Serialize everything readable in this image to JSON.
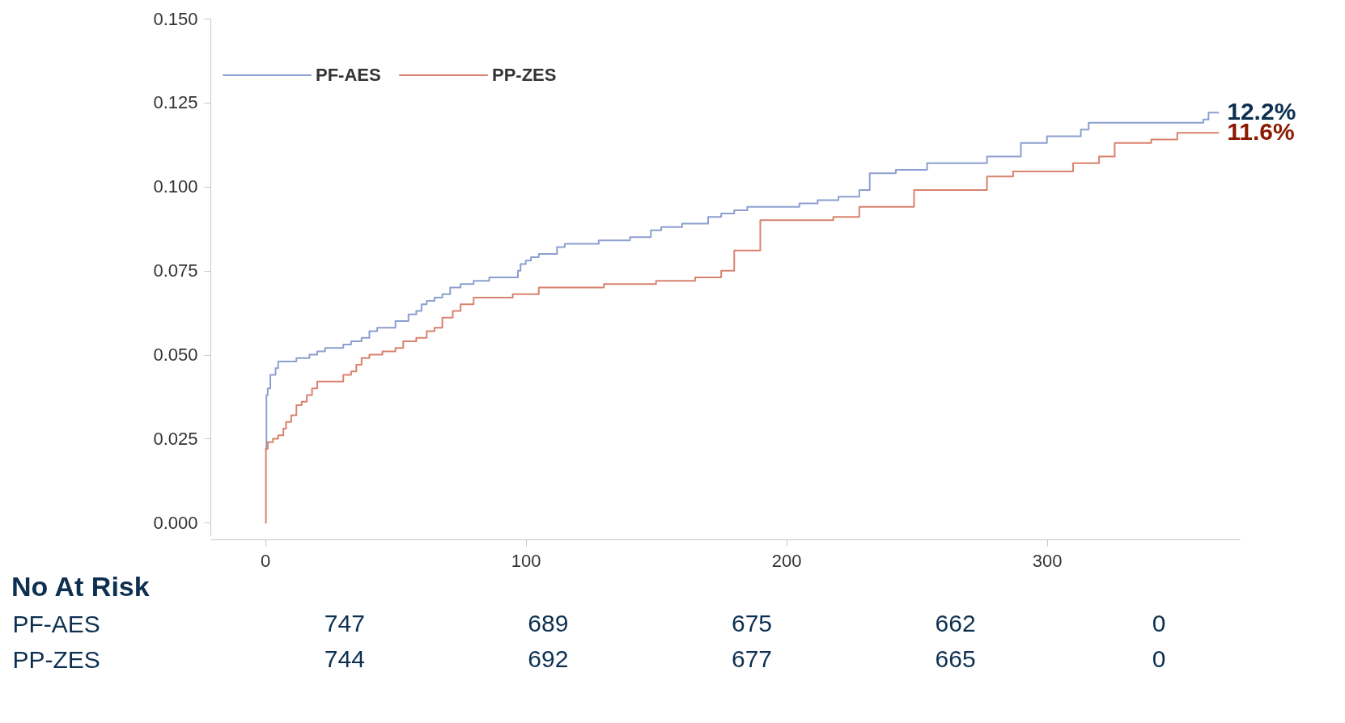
{
  "chart_data": [
    {
      "type": "step",
      "legend": "top left",
      "xlim": [
        -21,
        374
      ],
      "ylim": [
        -0.004,
        0.15
      ],
      "xticks": [
        0,
        100,
        200,
        300
      ],
      "yticks": [
        {
          "value": 0,
          "label": "0.000"
        },
        {
          "value": 0.025,
          "label": "0.025"
        },
        {
          "value": 0.05,
          "label": "0.050"
        },
        {
          "value": 0.075,
          "label": "0.075"
        },
        {
          "value": 0.1,
          "label": "0.100"
        },
        {
          "value": 0.125,
          "label": "0.125"
        },
        {
          "value": 0.15,
          "label": "0.150"
        }
      ],
      "series": [
        {
          "name": "PF-AES",
          "color": "#8c9fd0",
          "x": [
            0,
            0.5,
            1,
            2,
            4,
            5,
            12,
            17,
            20,
            23,
            30,
            33,
            37,
            40,
            43,
            50,
            55,
            58,
            60,
            62,
            65,
            68,
            71,
            75,
            80,
            86,
            97,
            98,
            100,
            102,
            105,
            112,
            115,
            128,
            140,
            148,
            152,
            160,
            170,
            175,
            180,
            185,
            205,
            212,
            220,
            228,
            232,
            242,
            254,
            277,
            290,
            300,
            313,
            316,
            360,
            362,
            366
          ],
          "values": [
            0.022,
            0.038,
            0.04,
            0.044,
            0.046,
            0.048,
            0.049,
            0.05,
            0.051,
            0.052,
            0.053,
            0.054,
            0.055,
            0.057,
            0.058,
            0.06,
            0.062,
            0.063,
            0.065,
            0.066,
            0.067,
            0.068,
            0.07,
            0.071,
            0.072,
            0.073,
            0.075,
            0.077,
            0.078,
            0.079,
            0.08,
            0.082,
            0.083,
            0.084,
            0.085,
            0.087,
            0.088,
            0.089,
            0.091,
            0.092,
            0.093,
            0.094,
            0.095,
            0.096,
            0.097,
            0.099,
            0.104,
            0.105,
            0.107,
            0.109,
            0.113,
            0.115,
            0.117,
            0.119,
            0.12,
            0.122,
            0.122
          ]
        },
        {
          "name": "PP-ZES",
          "color": "#d9826e",
          "x": [
            0,
            0.3,
            1,
            3,
            5,
            7,
            8,
            10,
            12,
            14,
            16,
            18,
            20,
            30,
            33,
            35,
            37,
            40,
            45,
            50,
            53,
            58,
            62,
            65,
            68,
            72,
            75,
            80,
            95,
            105,
            130,
            150,
            165,
            175,
            180,
            190,
            218,
            228,
            249,
            277,
            287,
            310,
            320,
            326,
            340,
            350,
            366
          ],
          "values": [
            0,
            0.022,
            0.024,
            0.025,
            0.026,
            0.028,
            0.03,
            0.032,
            0.035,
            0.036,
            0.038,
            0.04,
            0.042,
            0.044,
            0.045,
            0.047,
            0.049,
            0.05,
            0.051,
            0.052,
            0.054,
            0.055,
            0.057,
            0.058,
            0.061,
            0.063,
            0.065,
            0.067,
            0.068,
            0.07,
            0.071,
            0.072,
            0.073,
            0.075,
            0.081,
            0.09,
            0.091,
            0.094,
            0.099,
            0.103,
            0.1045,
            0.107,
            0.109,
            0.113,
            0.114,
            0.116,
            0.116
          ]
        }
      ],
      "annotations": [
        {
          "text": "12.2%",
          "x": 366,
          "y": 0.122
        },
        {
          "text": "11.6%",
          "x": 366,
          "y": 0.116
        }
      ]
    },
    {
      "type": "other",
      "title": "No At Risk",
      "annotations": [
        "PF-AES",
        "747",
        "689",
        "675",
        "662",
        "0",
        "PP-ZES",
        "744",
        "692",
        "677",
        "665",
        "0"
      ]
    }
  ]
}
